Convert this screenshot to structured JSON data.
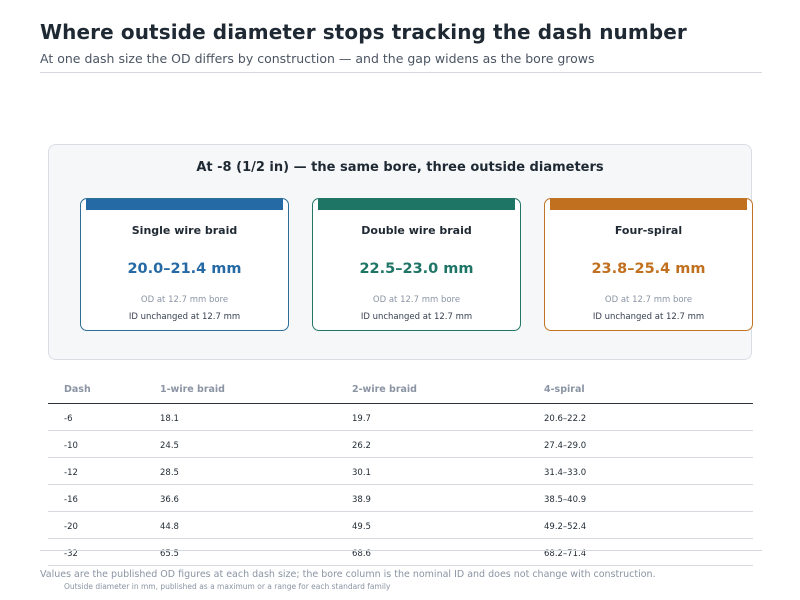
{
  "header": {
    "title": "Where outside diameter stops tracking the dash number",
    "subtitle": "At one dash size the OD differs by construction — and the gap widens as the bore grows"
  },
  "panel": {
    "heading": "At -8 (1/2 in) — the same bore, three outside diameters",
    "cards": [
      {
        "name": "Single wire braid",
        "value": "20.0–21.4 mm",
        "note": "OD at 12.7 mm bore",
        "id_text": "ID unchanged at 12.7 mm",
        "color": "#2569a5",
        "border": "#2c6e96"
      },
      {
        "name": "Double wire braid",
        "value": "22.5–23.0 mm",
        "note": "OD at 12.7 mm bore",
        "id_text": "ID unchanged at 12.7 mm",
        "color": "#1e7566",
        "border": "#237566"
      },
      {
        "name": "Four-spiral",
        "value": "23.8–25.4 mm",
        "note": "OD at 12.7 mm bore",
        "id_text": "ID unchanged at 12.7 mm",
        "color": "#c0701f",
        "border": "#c27425"
      }
    ]
  },
  "table": {
    "headers": [
      "Dash",
      "1-wire braid",
      "2-wire braid",
      "4-spiral"
    ],
    "rows": [
      [
        "-6",
        "18.1",
        "19.7",
        "20.6–22.2"
      ],
      [
        "-10",
        "24.5",
        "26.2",
        "27.4–29.0"
      ],
      [
        "-12",
        "28.5",
        "30.1",
        "31.4–33.0"
      ],
      [
        "-16",
        "36.6",
        "38.9",
        "38.5–40.9"
      ],
      [
        "-20",
        "44.8",
        "49.5",
        "49.2–52.4"
      ],
      [
        "-32",
        "65.5",
        "68.6",
        "68.2–71.4"
      ]
    ]
  },
  "footer": {
    "note": "Values are the published OD figures at each dash size; the bore column is the nominal ID and does not change with construction.",
    "caption": "Outside diameter in mm, published as a maximum or a range for each standard family"
  }
}
